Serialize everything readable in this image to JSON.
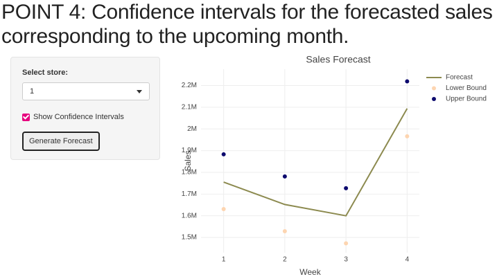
{
  "heading": {
    "line1": "POINT 4: Confidence intervals for the forecasted sales",
    "line2": "corresponding to the upcoming month."
  },
  "sidebar": {
    "store_label": "Select store:",
    "store_value": "1",
    "checkbox_label": "Show Confidence Intervals",
    "checkbox_checked": true,
    "button": "Generate Forecast"
  },
  "chart_data": {
    "type": "line",
    "title": "Sales Forecast",
    "x_label": "Week",
    "y_label": "Sales",
    "x": [
      1,
      2,
      3,
      4
    ],
    "series": [
      {
        "name": "Forecast",
        "color": "#8c8a4f",
        "mode": "lines",
        "values": [
          1755000,
          1652000,
          1600000,
          2094000
        ]
      },
      {
        "name": "Lower Bound",
        "color": "#fdd5b1",
        "mode": "markers",
        "values": [
          1631000,
          1529000,
          1473000,
          1966000
        ]
      },
      {
        "name": "Upper Bound",
        "color": "#0d0a6e",
        "mode": "markers",
        "values": [
          1883000,
          1781000,
          1727000,
          2219000
        ]
      }
    ],
    "xlim": [
      0.63,
      4.2
    ],
    "ylim": [
      1430000,
      2275000
    ],
    "xticks": [
      1,
      2,
      3,
      4
    ],
    "yticks": [
      {
        "value": 1500000,
        "label": "1.5M"
      },
      {
        "value": 1600000,
        "label": "1.6M"
      },
      {
        "value": 1700000,
        "label": "1.7M"
      },
      {
        "value": 1800000,
        "label": "1.8M"
      },
      {
        "value": 1900000,
        "label": "1.9M"
      },
      {
        "value": 2000000,
        "label": "2M"
      },
      {
        "value": 2100000,
        "label": "2.1M"
      },
      {
        "value": 2200000,
        "label": "2.2M"
      }
    ],
    "grid": true,
    "legend": "top-right"
  }
}
